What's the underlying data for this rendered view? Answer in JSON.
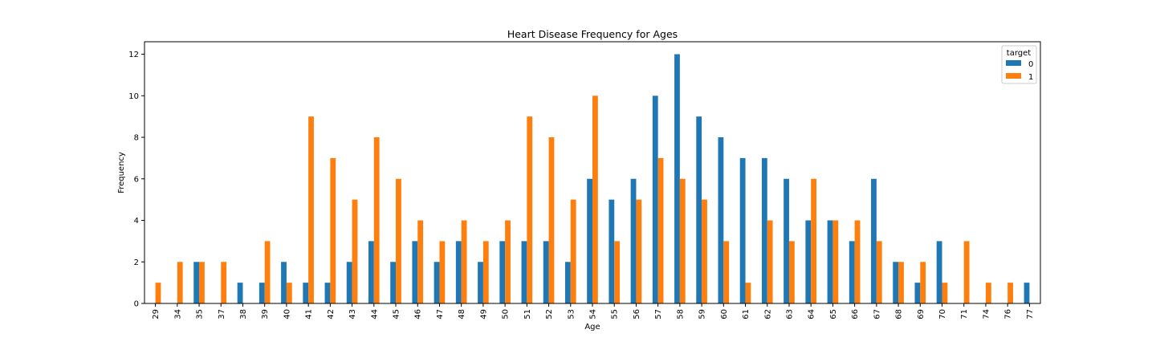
{
  "chart_data": {
    "type": "bar",
    "title": "Heart Disease Frequency for Ages",
    "xlabel": "Age",
    "ylabel": "Frequency",
    "ylim": [
      0,
      12.6
    ],
    "yticks": [
      0,
      2,
      4,
      6,
      8,
      10,
      12
    ],
    "categories": [
      "29",
      "34",
      "35",
      "37",
      "38",
      "39",
      "40",
      "41",
      "42",
      "43",
      "44",
      "45",
      "46",
      "47",
      "48",
      "49",
      "50",
      "51",
      "52",
      "53",
      "54",
      "55",
      "56",
      "57",
      "58",
      "59",
      "60",
      "61",
      "62",
      "63",
      "64",
      "65",
      "66",
      "67",
      "68",
      "69",
      "70",
      "71",
      "74",
      "76",
      "77"
    ],
    "series": [
      {
        "name": "0",
        "color": "#1f77b4",
        "values": [
          0,
          0,
          2,
          0,
          1,
          1,
          2,
          1,
          1,
          2,
          3,
          2,
          3,
          2,
          3,
          2,
          3,
          3,
          3,
          2,
          6,
          5,
          6,
          10,
          12,
          9,
          8,
          7,
          7,
          6,
          4,
          4,
          3,
          6,
          2,
          1,
          3,
          0,
          0,
          0,
          1
        ]
      },
      {
        "name": "1",
        "color": "#ff7f0e",
        "values": [
          1,
          2,
          2,
          2,
          0,
          3,
          1,
          9,
          7,
          5,
          8,
          6,
          4,
          3,
          4,
          3,
          4,
          9,
          8,
          5,
          10,
          3,
          5,
          7,
          6,
          5,
          3,
          1,
          4,
          3,
          6,
          4,
          4,
          3,
          2,
          2,
          1,
          3,
          1,
          1,
          0
        ]
      }
    ],
    "legend": {
      "title": "target",
      "position": "top-right"
    },
    "grid": false
  }
}
